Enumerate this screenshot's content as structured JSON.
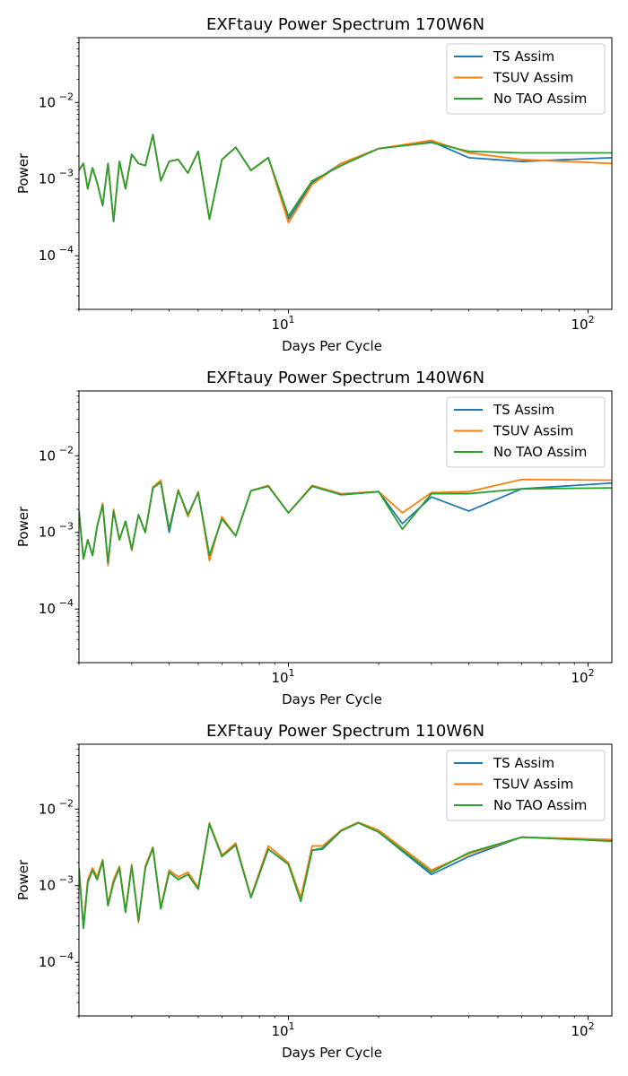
{
  "figure": {
    "layout": "three stacked log-log line charts"
  },
  "colors": {
    "TS Assim": "#1f77b4",
    "TSUV Assim": "#ff7f0e",
    "No TAO Assim": "#2ca02c"
  },
  "chart_data": [
    {
      "type": "line",
      "title": "EXFtauy Power Spectrum 170W6N",
      "xlabel": "Days Per Cycle",
      "ylabel": "Power",
      "xscale": "log",
      "yscale": "log",
      "xlim": [
        2,
        120
      ],
      "ylim": [
        2e-05,
        0.07
      ],
      "x_ticks": [
        {
          "value": 10,
          "base": "10",
          "exp": "1"
        },
        {
          "value": 100,
          "base": "10",
          "exp": "2"
        }
      ],
      "y_ticks": [
        {
          "value": 0.0001,
          "base": "10",
          "exp": "−4"
        },
        {
          "value": 0.001,
          "base": "10",
          "exp": "−3"
        },
        {
          "value": 0.01,
          "base": "10",
          "exp": "−2"
        }
      ],
      "legend": {
        "placement": "top-right",
        "entries": [
          "TS Assim",
          "TSUV Assim",
          "No TAO Assim"
        ]
      },
      "grid": false,
      "x": [
        2.0,
        2.07,
        2.14,
        2.22,
        2.3,
        2.4,
        2.5,
        2.61,
        2.73,
        2.86,
        3.0,
        3.16,
        3.33,
        3.53,
        3.75,
        4.0,
        4.29,
        4.62,
        5.0,
        5.45,
        6.0,
        6.67,
        7.5,
        8.57,
        10.0,
        12.0,
        15.0,
        20.0,
        30.0,
        40.0,
        60.0,
        120.0
      ],
      "series": [
        {
          "name": "TS Assim",
          "values": [
            0.0013,
            0.0016,
            0.00075,
            0.0014,
            0.0009,
            0.00045,
            0.0016,
            0.00028,
            0.0017,
            0.00075,
            0.0021,
            0.0016,
            0.0015,
            0.0038,
            0.00095,
            0.0017,
            0.0018,
            0.0012,
            0.0023,
            0.0003,
            0.0018,
            0.0026,
            0.0013,
            0.0019,
            0.0003,
            0.0009,
            0.0016,
            0.0025,
            0.0031,
            0.0019,
            0.0017,
            0.0019
          ]
        },
        {
          "name": "TSUV Assim",
          "values": [
            0.0013,
            0.0016,
            0.00075,
            0.0014,
            0.0009,
            0.00045,
            0.0016,
            0.00028,
            0.0017,
            0.00075,
            0.0021,
            0.0016,
            0.0015,
            0.0038,
            0.00095,
            0.0017,
            0.0018,
            0.0012,
            0.0023,
            0.0003,
            0.0018,
            0.0026,
            0.0013,
            0.0019,
            0.00027,
            0.00085,
            0.0016,
            0.0025,
            0.0032,
            0.0022,
            0.0018,
            0.0016
          ]
        },
        {
          "name": "No TAO Assim",
          "values": [
            0.0013,
            0.0016,
            0.00075,
            0.0014,
            0.0009,
            0.00045,
            0.0016,
            0.00028,
            0.0017,
            0.00075,
            0.0021,
            0.0016,
            0.0015,
            0.0038,
            0.00095,
            0.0017,
            0.0018,
            0.0012,
            0.0023,
            0.0003,
            0.0018,
            0.0026,
            0.0013,
            0.0019,
            0.00033,
            0.00095,
            0.0015,
            0.0025,
            0.003,
            0.0023,
            0.0022,
            0.0022
          ]
        }
      ]
    },
    {
      "type": "line",
      "title": "EXFtauy Power Spectrum 140W6N",
      "xlabel": "Days Per Cycle",
      "ylabel": "Power",
      "xscale": "log",
      "yscale": "log",
      "xlim": [
        2,
        120
      ],
      "ylim": [
        2e-05,
        0.07
      ],
      "x_ticks": [
        {
          "value": 10,
          "base": "10",
          "exp": "1"
        },
        {
          "value": 100,
          "base": "10",
          "exp": "2"
        }
      ],
      "y_ticks": [
        {
          "value": 0.0001,
          "base": "10",
          "exp": "−4"
        },
        {
          "value": 0.001,
          "base": "10",
          "exp": "−3"
        },
        {
          "value": 0.01,
          "base": "10",
          "exp": "−2"
        }
      ],
      "legend": {
        "placement": "top-right",
        "entries": [
          "TS Assim",
          "TSUV Assim",
          "No TAO Assim"
        ]
      },
      "grid": false,
      "x": [
        2.0,
        2.07,
        2.14,
        2.22,
        2.3,
        2.4,
        2.5,
        2.61,
        2.73,
        2.86,
        3.0,
        3.16,
        3.33,
        3.53,
        3.75,
        4.0,
        4.29,
        4.62,
        5.0,
        5.45,
        6.0,
        6.67,
        7.5,
        8.57,
        10.0,
        12.0,
        15.0,
        20.0,
        24.0,
        30.0,
        40.0,
        60.0,
        120.0
      ],
      "series": [
        {
          "name": "TS Assim",
          "values": [
            0.0019,
            0.00045,
            0.0008,
            0.0005,
            0.0012,
            0.0023,
            0.0004,
            0.0019,
            0.0008,
            0.0014,
            0.0006,
            0.0017,
            0.001,
            0.0038,
            0.0045,
            0.001,
            0.0035,
            0.0017,
            0.0033,
            0.0005,
            0.0015,
            0.0009,
            0.0035,
            0.004,
            0.0018,
            0.004,
            0.0031,
            0.0034,
            0.0013,
            0.0029,
            0.0019,
            0.0037,
            0.0044
          ]
        },
        {
          "name": "TSUV Assim",
          "values": [
            0.0019,
            0.00045,
            0.0008,
            0.0005,
            0.0012,
            0.0024,
            0.00037,
            0.002,
            0.0008,
            0.0014,
            0.00058,
            0.0017,
            0.001,
            0.0039,
            0.0048,
            0.0011,
            0.0036,
            0.0016,
            0.0034,
            0.00043,
            0.0016,
            0.0009,
            0.0035,
            0.0041,
            0.0018,
            0.0041,
            0.0032,
            0.0034,
            0.0018,
            0.0033,
            0.0034,
            0.0049,
            0.0048
          ]
        },
        {
          "name": "No TAO Assim",
          "values": [
            0.0019,
            0.00045,
            0.0008,
            0.0005,
            0.0012,
            0.0023,
            0.0004,
            0.0019,
            0.0008,
            0.0014,
            0.0006,
            0.0017,
            0.001,
            0.0038,
            0.0045,
            0.0011,
            0.0035,
            0.0017,
            0.0033,
            0.0005,
            0.0015,
            0.0009,
            0.0035,
            0.004,
            0.0018,
            0.004,
            0.0031,
            0.0034,
            0.0011,
            0.0032,
            0.0032,
            0.0037,
            0.0038
          ]
        }
      ]
    },
    {
      "type": "line",
      "title": "EXFtauy Power Spectrum 110W6N",
      "xlabel": "Days Per Cycle",
      "ylabel": "Power",
      "xscale": "log",
      "yscale": "log",
      "xlim": [
        2,
        120
      ],
      "ylim": [
        2e-05,
        0.07
      ],
      "x_ticks": [
        {
          "value": 10,
          "base": "10",
          "exp": "1"
        },
        {
          "value": 100,
          "base": "10",
          "exp": "2"
        }
      ],
      "y_ticks": [
        {
          "value": 0.0001,
          "base": "10",
          "exp": "−4"
        },
        {
          "value": 0.001,
          "base": "10",
          "exp": "−3"
        },
        {
          "value": 0.01,
          "base": "10",
          "exp": "−2"
        }
      ],
      "legend": {
        "placement": "top-right",
        "entries": [
          "TS Assim",
          "TSUV Assim",
          "No TAO Assim"
        ]
      },
      "grid": false,
      "x": [
        2.0,
        2.07,
        2.14,
        2.22,
        2.3,
        2.4,
        2.5,
        2.61,
        2.73,
        2.86,
        3.0,
        3.16,
        3.33,
        3.53,
        3.75,
        4.0,
        4.29,
        4.62,
        5.0,
        5.45,
        6.0,
        6.67,
        7.5,
        8.57,
        10.0,
        11.0,
        12.0,
        13.0,
        15.0,
        17.1,
        20.0,
        30.0,
        40.0,
        60.0,
        120.0
      ],
      "series": [
        {
          "name": "TS Assim",
          "values": [
            0.0017,
            0.00028,
            0.0011,
            0.0016,
            0.0012,
            0.0021,
            0.00055,
            0.0011,
            0.0017,
            0.00045,
            0.0018,
            0.00035,
            0.0017,
            0.0031,
            0.0005,
            0.0015,
            0.0012,
            0.0014,
            0.0009,
            0.0063,
            0.0024,
            0.0034,
            0.0007,
            0.003,
            0.0019,
            0.00065,
            0.0029,
            0.003,
            0.0052,
            0.0066,
            0.005,
            0.0014,
            0.0024,
            0.0043,
            0.0039
          ]
        },
        {
          "name": "TSUV Assim",
          "values": [
            0.0017,
            0.0003,
            0.0012,
            0.0017,
            0.0013,
            0.0022,
            0.00058,
            0.0012,
            0.0018,
            0.00047,
            0.0019,
            0.00033,
            0.0018,
            0.0032,
            0.00052,
            0.0016,
            0.0013,
            0.0015,
            0.00095,
            0.0066,
            0.0025,
            0.0036,
            0.00072,
            0.0033,
            0.002,
            0.0007,
            0.0033,
            0.0033,
            0.0053,
            0.0067,
            0.0053,
            0.0016,
            0.0026,
            0.0043,
            0.004
          ]
        },
        {
          "name": "No TAO Assim",
          "values": [
            0.0017,
            0.00028,
            0.0011,
            0.0016,
            0.0012,
            0.0021,
            0.00055,
            0.0011,
            0.0017,
            0.00045,
            0.0018,
            0.00035,
            0.0017,
            0.0031,
            0.0005,
            0.0015,
            0.0012,
            0.0014,
            0.0009,
            0.0064,
            0.0024,
            0.0034,
            0.0007,
            0.003,
            0.0019,
            0.00062,
            0.0029,
            0.0031,
            0.0052,
            0.0066,
            0.005,
            0.0015,
            0.0027,
            0.0043,
            0.0038
          ]
        }
      ]
    }
  ]
}
